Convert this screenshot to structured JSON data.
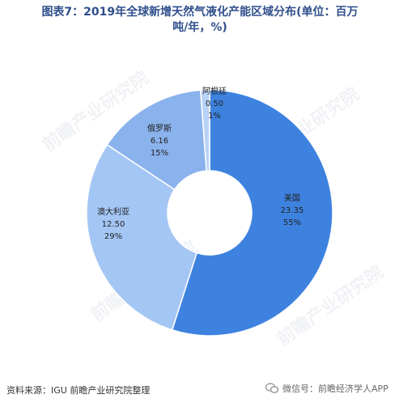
{
  "title_line1": "图表7：2019年全球新增天然气液化产能区域分布(单位：百万",
  "title_line2": "吨/年，%)",
  "source": "资料来源：IGU 前瞻产业研究院整理",
  "wechat_text": "微信号：前瞻经济学人APP",
  "watermark": "前瞻产业研究院",
  "colors": {
    "title": "#2f4f8c",
    "slice_us": "#3e82e0",
    "slice_au": "#a4c6f4",
    "slice_ru": "#8ab2ec",
    "slice_ar": "#b9d3f7"
  },
  "chart_data": {
    "type": "pie",
    "variant": "donut",
    "start_angle_deg": 0,
    "direction": "clockwise",
    "slices": [
      {
        "label": "美国",
        "value": 23.35,
        "percent": "55%"
      },
      {
        "label": "澳大利亚",
        "value": 12.5,
        "percent": "29%"
      },
      {
        "label": "俄罗斯",
        "value": 6.16,
        "percent": "15%"
      },
      {
        "label": "阿根廷",
        "value": 0.5,
        "percent": "1%"
      }
    ]
  }
}
